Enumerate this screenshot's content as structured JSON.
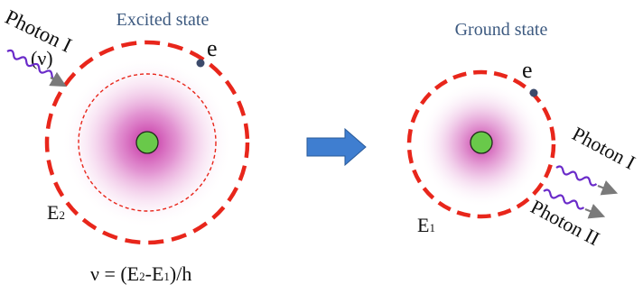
{
  "left_panel": {
    "title": "Excited state",
    "electron_label": "e",
    "photon_label": "Photon I",
    "photon_freq_label": "(ν)",
    "level_base": "E",
    "level_sub": "2"
  },
  "right_panel": {
    "title": "Ground state",
    "electron_label": "e",
    "photon1_label": "Photon I",
    "photon2_label": "Photon II",
    "level_base": "E",
    "level_sub": "1"
  },
  "formula": {
    "lhs": "ν = (E",
    "sub2": "2",
    "mid": "-E",
    "sub1": "1",
    "rhs": ")/h"
  },
  "colors": {
    "title_text": "#3d5a80",
    "orbit_dashed": "#e8261b",
    "glow": "#c0209a",
    "nucleus_fill": "#69c94a",
    "electron": "#3c4a6b",
    "photon_wave": "#6a2bc9",
    "photon_arrow": "#7a7a7a",
    "transition_arrow": "#3f7ed0"
  },
  "icons": {
    "transition_arrow": "right-arrow-icon"
  }
}
